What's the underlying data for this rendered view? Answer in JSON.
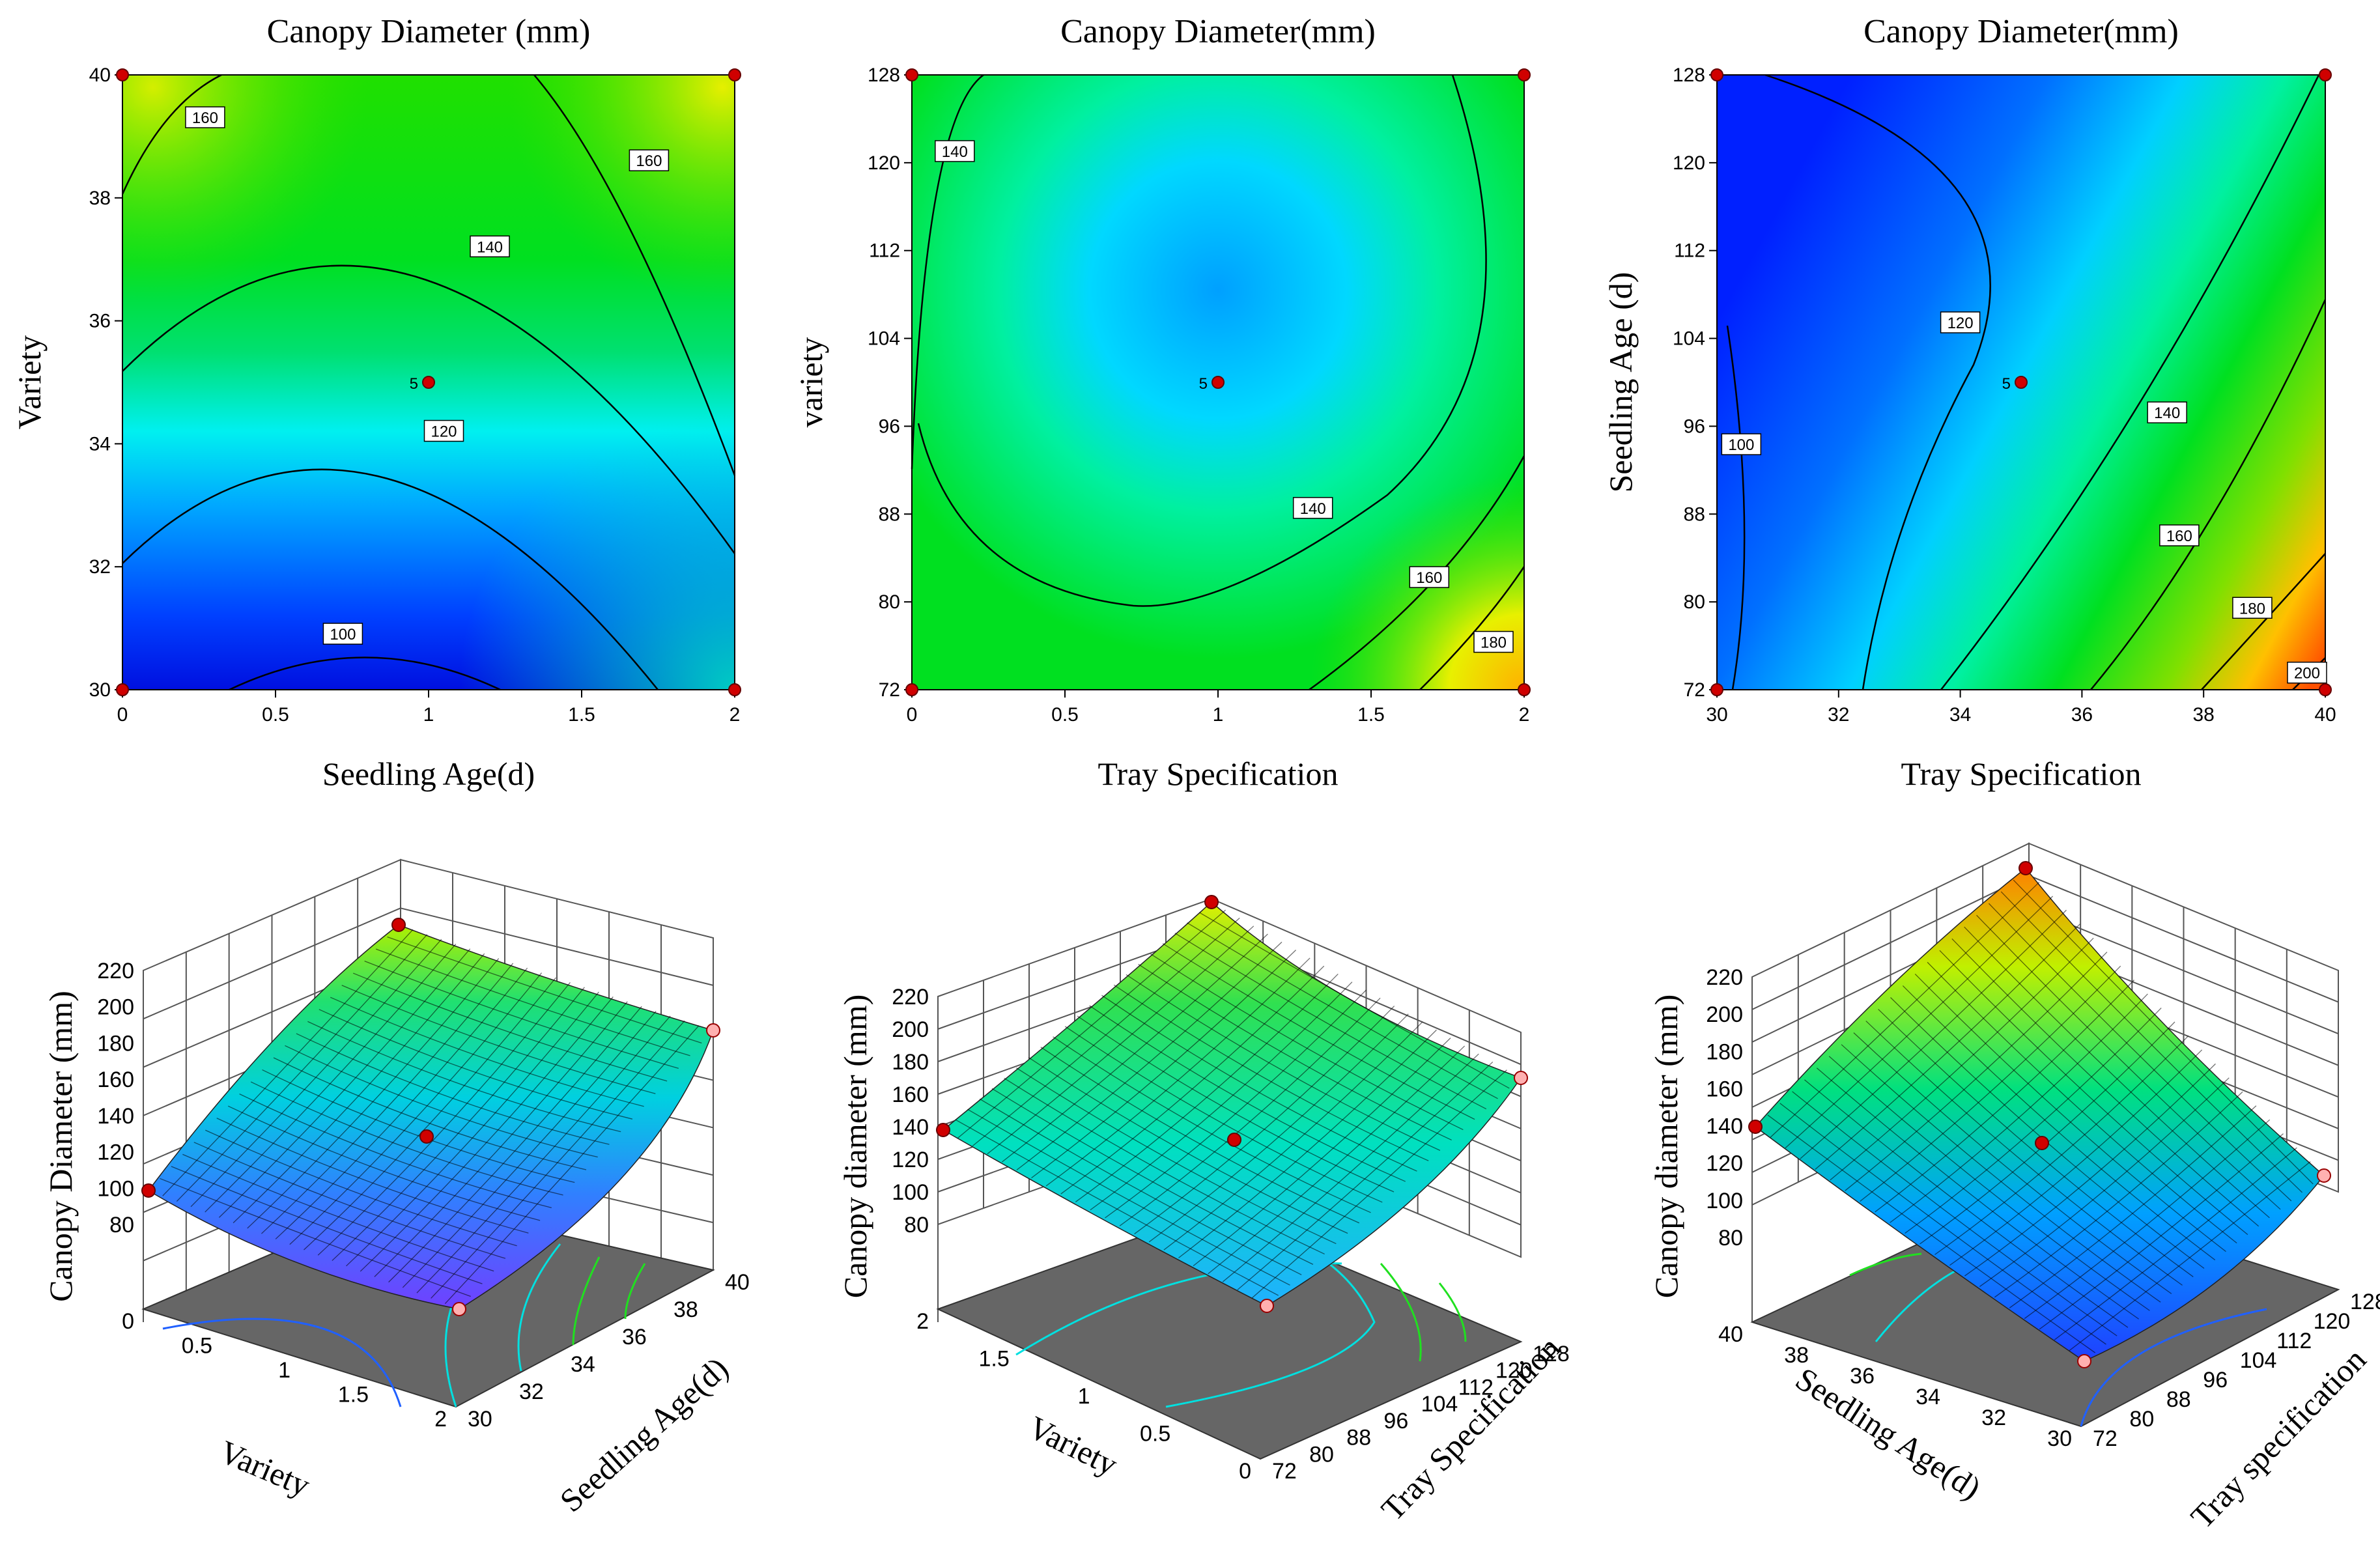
{
  "chart_data": [
    {
      "type": "heatmap",
      "title": "Canopy Diameter (mm)",
      "xlabel": "Seedling Age(d)",
      "ylabel": "Variety",
      "xlim": [
        0,
        2
      ],
      "ylim": [
        30,
        40
      ],
      "xticks": [
        "0",
        "0.5",
        "1",
        "1.5",
        "2"
      ],
      "yticks": [
        "30",
        "32",
        "34",
        "36",
        "38",
        "40"
      ],
      "contours": [
        {
          "label": "100",
          "pos": [
            0.72,
            30.9
          ]
        },
        {
          "label": "120",
          "pos": [
            1.05,
            34.2
          ]
        },
        {
          "label": "140",
          "pos": [
            1.2,
            37.2
          ]
        },
        {
          "label": "160",
          "pos": [
            0.27,
            39.3
          ]
        },
        {
          "label": "160",
          "pos": [
            1.72,
            38.6
          ]
        }
      ],
      "center_point": {
        "label": "5",
        "x": 1,
        "y": 35
      },
      "design_points": [
        [
          0,
          30
        ],
        [
          0,
          40
        ],
        [
          2,
          30
        ],
        [
          2,
          40
        ],
        [
          1,
          35
        ]
      ]
    },
    {
      "type": "heatmap",
      "title": "Canopy Diameter(mm)",
      "xlabel": "Tray Specification",
      "ylabel": "variety",
      "xlim": [
        0,
        2
      ],
      "ylim": [
        72,
        128
      ],
      "xticks": [
        "0",
        "0.5",
        "1",
        "1.5",
        "2"
      ],
      "yticks": [
        "72",
        "80",
        "88",
        "96",
        "104",
        "112",
        "120",
        "128"
      ],
      "contours": [
        {
          "label": "140",
          "pos": [
            0.14,
            121
          ]
        },
        {
          "label": "140",
          "pos": [
            1.31,
            88.5
          ]
        },
        {
          "label": "160",
          "pos": [
            1.69,
            82.2
          ]
        },
        {
          "label": "180",
          "pos": [
            1.9,
            76.3
          ]
        }
      ],
      "center_point": {
        "label": "5",
        "x": 1,
        "y": 100
      },
      "design_points": [
        [
          0,
          72
        ],
        [
          0,
          128
        ],
        [
          2,
          72
        ],
        [
          2,
          128
        ],
        [
          1,
          100
        ]
      ]
    },
    {
      "type": "heatmap",
      "title": "Canopy Diameter(mm)",
      "xlabel": "Tray Specification",
      "ylabel": "Seedling Age (d)",
      "xlim": [
        30,
        40
      ],
      "ylim": [
        72,
        128
      ],
      "xticks": [
        "30",
        "32",
        "34",
        "36",
        "38",
        "40"
      ],
      "yticks": [
        "72",
        "80",
        "88",
        "96",
        "104",
        "112",
        "120",
        "128"
      ],
      "contours": [
        {
          "label": "100",
          "pos": [
            30.4,
            94.3
          ]
        },
        {
          "label": "120",
          "pos": [
            34.0,
            105.4
          ]
        },
        {
          "label": "140",
          "pos": [
            37.4,
            97.2
          ]
        },
        {
          "label": "160",
          "pos": [
            37.6,
            86.0
          ]
        },
        {
          "label": "180",
          "pos": [
            38.8,
            79.4
          ]
        },
        {
          "label": "200",
          "pos": [
            39.7,
            73.5
          ]
        }
      ],
      "center_point": {
        "label": "5",
        "x": 35,
        "y": 100
      },
      "design_points": [
        [
          30,
          72
        ],
        [
          30,
          128
        ],
        [
          40,
          72
        ],
        [
          40,
          128
        ],
        [
          35,
          100
        ]
      ]
    },
    {
      "type": "surface",
      "zlabel": "Canopy Diameter (mm)",
      "xlabel": "Variety",
      "ylabel": "Seedling Age(d)",
      "zticks": [
        "80",
        "100",
        "120",
        "140",
        "160",
        "180",
        "200",
        "220"
      ],
      "xticks": [
        "0",
        "0.5",
        "1",
        "1.5",
        "2"
      ],
      "yticks": [
        "30",
        "32",
        "34",
        "36",
        "38",
        "40"
      ],
      "zlim": [
        80,
        220
      ]
    },
    {
      "type": "surface",
      "zlabel": "Canopy diameter (mm)",
      "xlabel": "Variety",
      "ylabel": "Tray Specification",
      "zticks": [
        "80",
        "100",
        "120",
        "140",
        "160",
        "180",
        "200",
        "220"
      ],
      "xticks": [
        "2",
        "1.5",
        "1",
        "0.5",
        "0"
      ],
      "yticks": [
        "72",
        "80",
        "88",
        "96",
        "104",
        "112",
        "120",
        "128"
      ],
      "zlim": [
        80,
        220
      ]
    },
    {
      "type": "surface",
      "zlabel": "Canopy diameter (mm)",
      "xlabel": "Seedling Age(d)",
      "ylabel": "Tray specification",
      "zticks": [
        "80",
        "100",
        "120",
        "140",
        "160",
        "180",
        "200",
        "220"
      ],
      "xticks": [
        "40",
        "38",
        "36",
        "34",
        "32",
        "30"
      ],
      "yticks": [
        "72",
        "80",
        "88",
        "96",
        "104",
        "112",
        "120",
        "128"
      ],
      "zlim": [
        80,
        220
      ]
    }
  ]
}
